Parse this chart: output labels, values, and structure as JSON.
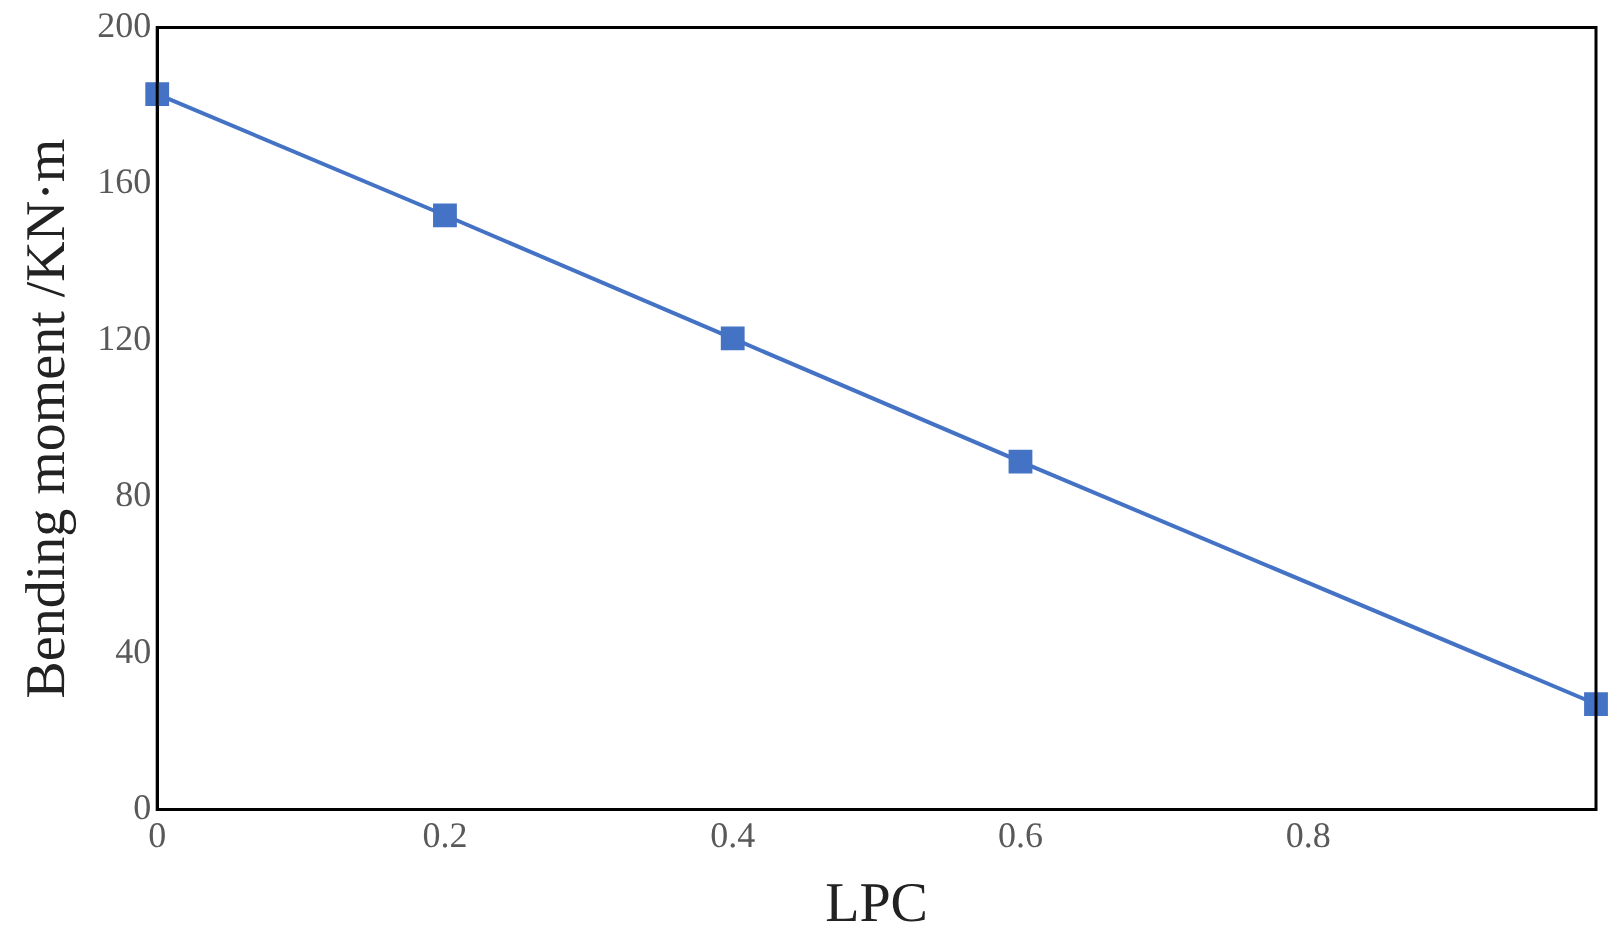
{
  "chart_data": {
    "type": "line",
    "xlabel": "LPC",
    "ylabel": "Bending moment /KN·m",
    "x": [
      0,
      0.2,
      0.4,
      0.6,
      1.0
    ],
    "series": [
      {
        "color": "#4472c4",
        "values": [
          183,
          152,
          120.5,
          89,
          27
        ]
      }
    ],
    "xlim": [
      0,
      1
    ],
    "xticks": [
      0,
      0.2,
      0.4,
      0.6,
      0.8
    ],
    "ylim": [
      0,
      200
    ],
    "yticks": [
      0,
      40,
      80,
      120,
      160,
      200
    ],
    "marker": "square",
    "line_style": "solid",
    "grid": false,
    "legend": false
  }
}
